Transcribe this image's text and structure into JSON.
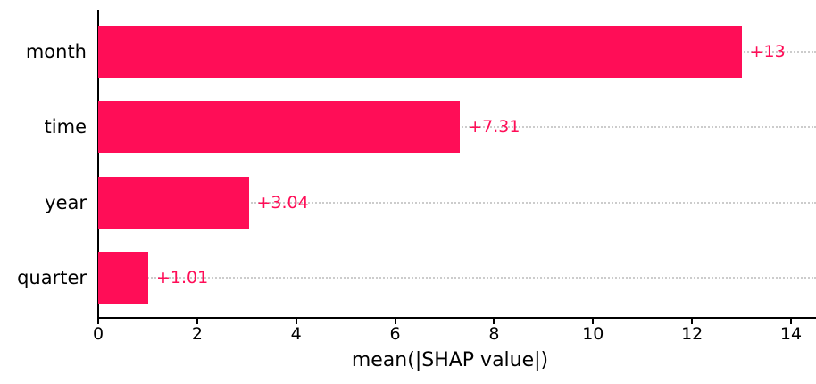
{
  "chart_data": {
    "type": "bar",
    "orientation": "horizontal",
    "title": "",
    "xlabel": "mean(|SHAP value|)",
    "ylabel": "",
    "categories": [
      "month",
      "time",
      "year",
      "quarter"
    ],
    "values": [
      13,
      7.31,
      3.04,
      1.01
    ],
    "bar_labels": [
      "+13",
      "+7.31",
      "+3.04",
      "+1.01"
    ],
    "x_ticks": [
      0,
      2,
      4,
      6,
      8,
      10,
      12,
      14
    ],
    "xlim": [
      0,
      14.5
    ],
    "grid": "dotted horizontal gridline at each bar center, full plot width",
    "legend_position": "none",
    "colors": {
      "bar": "#ff0d57",
      "bar_label": "#ff0d57",
      "gridline": "#cccccc",
      "axis": "#000000",
      "text": "#000000",
      "background": "#ffffff"
    }
  }
}
